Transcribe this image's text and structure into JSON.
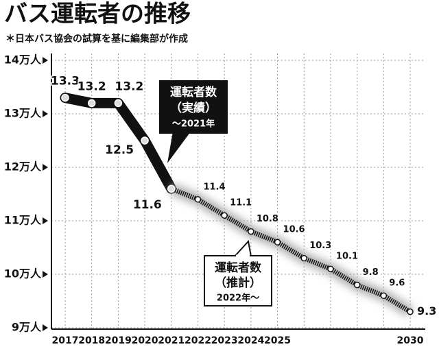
{
  "chart_data": {
    "type": "line",
    "title": "バス運転者の推移",
    "subtitle": "＊日本バス協会の試算を基に編集部が作成",
    "categories": [
      "2017",
      "2018",
      "2019",
      "2020",
      "2021",
      "2022",
      "2023",
      "2024",
      "2025",
      null,
      null,
      null,
      null,
      "2030"
    ],
    "series": [
      {
        "name": "運転者数",
        "note": "（実績）",
        "period": "～2021年",
        "color": "#111111",
        "style": "solid",
        "values": [
          13.3,
          13.2,
          13.2,
          12.5,
          11.6,
          null,
          null,
          null,
          null,
          null,
          null,
          null,
          null,
          null
        ]
      },
      {
        "name": "運転者数",
        "note": "（推計）",
        "period": "2022年～",
        "color": "#111111",
        "style": "dotted",
        "values": [
          null,
          null,
          null,
          null,
          11.6,
          11.4,
          11.1,
          10.8,
          10.6,
          10.3,
          10.1,
          9.8,
          9.6,
          9.3
        ]
      }
    ],
    "ylim": [
      9,
      14
    ],
    "yticks": [
      {
        "value": 9,
        "label": "9万人"
      },
      {
        "value": 10,
        "label": "10万人"
      },
      {
        "value": 11,
        "label": "11万人"
      },
      {
        "value": 12,
        "label": "12万人"
      },
      {
        "value": 13,
        "label": "13万人"
      },
      {
        "value": 14,
        "label": "14万人"
      }
    ],
    "grid": true
  }
}
